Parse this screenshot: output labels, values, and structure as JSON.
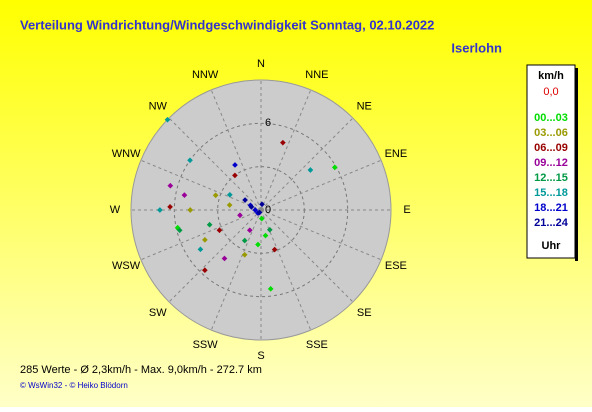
{
  "chart_data": {
    "type": "polar-scatter",
    "title": "Verteilung Windrichtung/Windgeschwindigkeit  Sonntag, 02.10.2022",
    "location": "Iserlohn",
    "directions": [
      "N",
      "NNE",
      "NE",
      "ENE",
      "E",
      "ESE",
      "SE",
      "SSE",
      "S",
      "SSW",
      "SW",
      "WSW",
      "W",
      "WNW",
      "NW",
      "NNW"
    ],
    "rlim": [
      0,
      9
    ],
    "rticks": [
      0,
      6
    ],
    "rgrid": [
      3,
      6
    ],
    "legend_title": "km/h",
    "legend_current": "0,0",
    "legend_footer": "Uhr",
    "series": [
      {
        "name": "00...03",
        "color": "#00dd00",
        "directions": [
          173,
          60,
          170,
          185,
          258,
          175
        ],
        "values": [
          5.5,
          5.9,
          1.8,
          2.4,
          5.9,
          0.6
        ]
      },
      {
        "name": "03...06",
        "color": "#999900",
        "directions": [
          288,
          242,
          279,
          200,
          270
        ],
        "values": [
          3.3,
          4.4,
          2.2,
          3.3,
          4.9
        ]
      },
      {
        "name": "06...09",
        "color": "#990000",
        "directions": [
          18,
          272,
          223,
          244,
          323,
          161
        ],
        "values": [
          4.9,
          6.3,
          5.7,
          3.2,
          3.0,
          2.9
        ]
      },
      {
        "name": "09...12",
        "color": "#990099",
        "directions": [
          281,
          217,
          256,
          209,
          285
        ],
        "values": [
          5.4,
          4.2,
          1.5,
          1.6,
          6.5
        ]
      },
      {
        "name": "12...15",
        "color": "#009944",
        "directions": [
          256,
          254,
          208,
          156
        ],
        "values": [
          5.8,
          3.7,
          2.4,
          1.5
        ]
      },
      {
        "name": "15...18",
        "color": "#009999",
        "directions": [
          314,
          270,
          51,
          305,
          237,
          296
        ],
        "values": [
          9.0,
          7.0,
          4.4,
          6.0,
          5.0,
          2.4
        ]
      },
      {
        "name": "18...21",
        "color": "#0000cc",
        "directions": [
          270,
          294,
          330,
          225
        ],
        "values": [
          0.4,
          0.8,
          3.6,
          0.3
        ]
      },
      {
        "name": "21...24",
        "color": "#000099",
        "directions": [
          210,
          302,
          288,
          10
        ],
        "values": [
          0.2,
          1.3,
          0.7,
          0.4
        ]
      }
    ],
    "footer": "285 Werte   -   Ø 2,3km/h   -   Max. 9,0km/h   -   272.7 km",
    "credit": "© WsWin32  -  © Heiko Blödorn"
  }
}
